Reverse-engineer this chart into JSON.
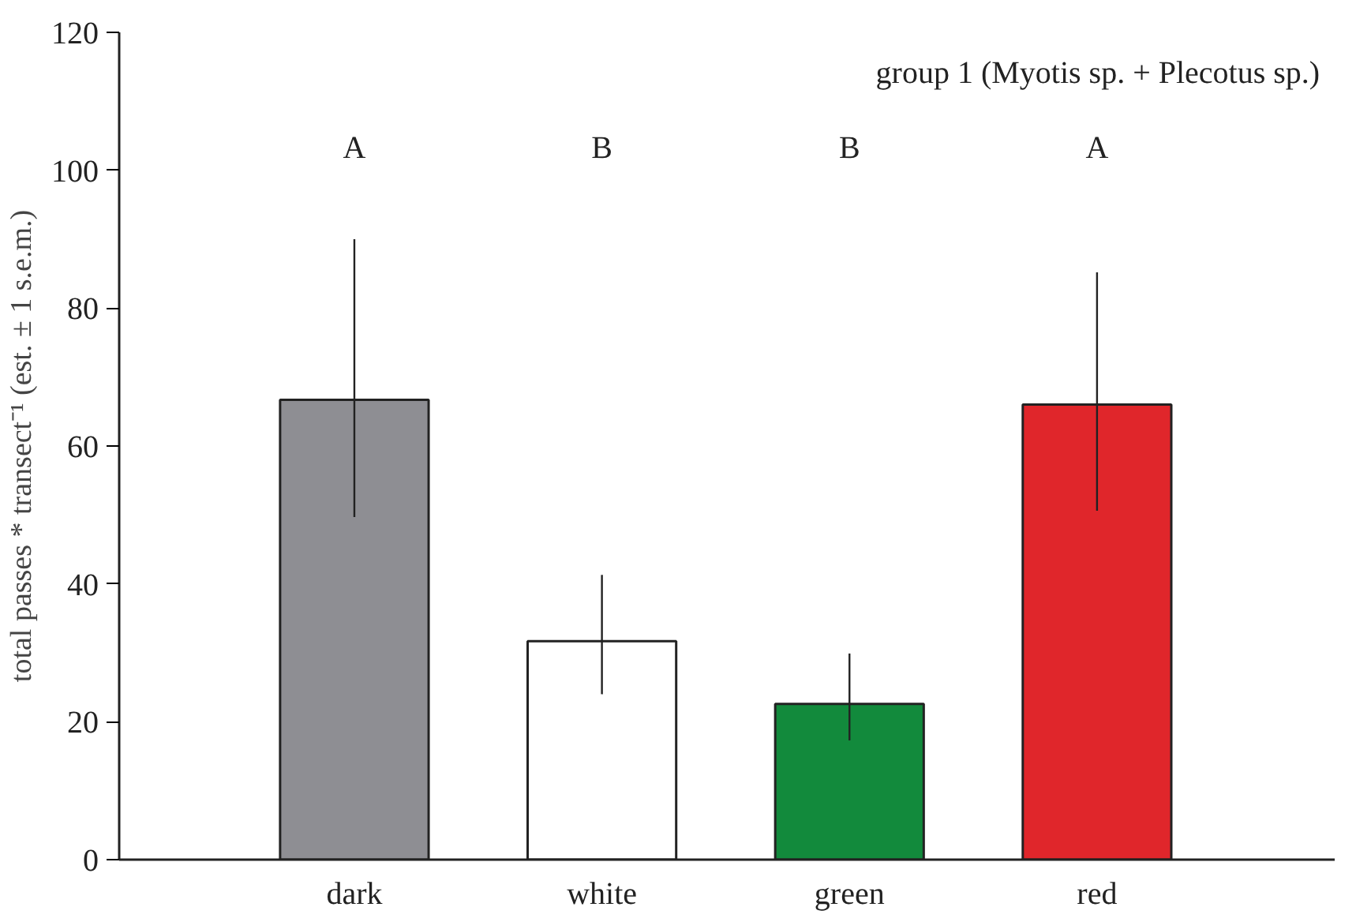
{
  "chart_data": {
    "type": "bar",
    "ylabel": "total passes * transect⁻¹ (est. ± 1 s.e.m.)",
    "categories": [
      "dark",
      "white",
      "green",
      "red"
    ],
    "values": [
      66.7,
      31.7,
      22.6,
      66
    ],
    "colors": [
      "#8e8e93",
      "#ffffff",
      "#128a3c",
      "#e0262b"
    ],
    "errors": [
      [
        49.7,
        90
      ],
      [
        24,
        41.3
      ],
      [
        17.3,
        29.9
      ],
      [
        50.6,
        85.2
      ]
    ],
    "ylim": [
      0,
      120
    ],
    "yticks": [
      0,
      20,
      40,
      60,
      80,
      100,
      120
    ],
    "grid": false,
    "annotations": [
      "group 1 (Myotis sp. + Plecotus sp.)",
      "A",
      "B",
      "B",
      "A"
    ]
  }
}
